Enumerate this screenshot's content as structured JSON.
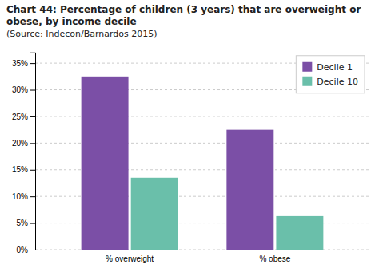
{
  "chart_data": {
    "type": "bar",
    "title": "Chart 44: Percentage of children (3 years) that are overweight or obese, by income decile",
    "subtitle": "(Source: Indecon/Barnardos 2015)",
    "categories": [
      "% overweight",
      "% obese"
    ],
    "series": [
      {
        "name": "Decile 1",
        "color": "#7B4FA6",
        "values": [
          32.5,
          22.5
        ]
      },
      {
        "name": "Decile 10",
        "color": "#6ABFAA",
        "values": [
          13.5,
          6.3
        ]
      }
    ],
    "ylim": [
      0,
      37
    ],
    "yticks": [
      {
        "value": 0,
        "label": "0%"
      },
      {
        "value": 5,
        "label": "5%"
      },
      {
        "value": 10,
        "label": "10%"
      },
      {
        "value": 15,
        "label": "15%"
      },
      {
        "value": 20,
        "label": "20%"
      },
      {
        "value": 25,
        "label": "25%"
      },
      {
        "value": 30,
        "label": "30%"
      },
      {
        "value": 35,
        "label": "35%"
      }
    ],
    "grid": true,
    "legend": "upper-right"
  }
}
